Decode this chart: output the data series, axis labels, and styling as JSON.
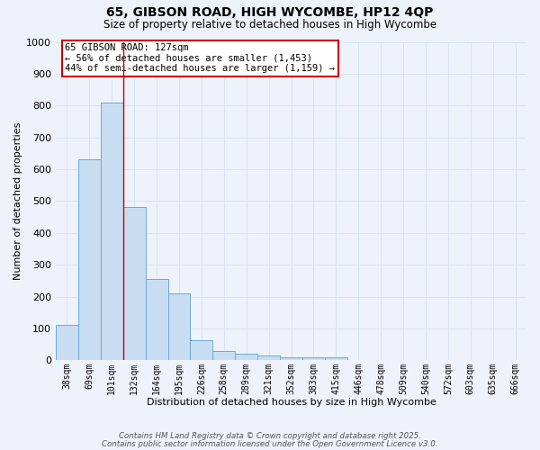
{
  "title1": "65, GIBSON ROAD, HIGH WYCOMBE, HP12 4QP",
  "title2": "Size of property relative to detached houses in High Wycombe",
  "xlabel": "Distribution of detached houses by size in High Wycombe",
  "ylabel": "Number of detached properties",
  "categories": [
    "38sqm",
    "69sqm",
    "101sqm",
    "132sqm",
    "164sqm",
    "195sqm",
    "226sqm",
    "258sqm",
    "289sqm",
    "321sqm",
    "352sqm",
    "383sqm",
    "415sqm",
    "446sqm",
    "478sqm",
    "509sqm",
    "540sqm",
    "572sqm",
    "603sqm",
    "635sqm",
    "666sqm"
  ],
  "values": [
    110,
    630,
    810,
    480,
    255,
    210,
    63,
    28,
    20,
    14,
    10,
    8,
    10,
    0,
    0,
    0,
    0,
    0,
    0,
    0,
    0
  ],
  "bar_color": "#c9ddf2",
  "bar_edge_color": "#6aaad4",
  "bar_width": 1.0,
  "vline_x": 2.5,
  "vline_color": "#cc0000",
  "annotation_text": "65 GIBSON ROAD: 127sqm\n← 56% of detached houses are smaller (1,453)\n44% of semi-detached houses are larger (1,159) →",
  "annotation_box_color": "#ffffff",
  "annotation_box_edge": "#cc0000",
  "ylim": [
    0,
    1000
  ],
  "yticks": [
    0,
    100,
    200,
    300,
    400,
    500,
    600,
    700,
    800,
    900,
    1000
  ],
  "background_color": "#eef2fb",
  "footer1": "Contains HM Land Registry data © Crown copyright and database right 2025.",
  "footer2": "Contains public sector information licensed under the Open Government Licence v3.0.",
  "grid_color": "#d8e4f0"
}
